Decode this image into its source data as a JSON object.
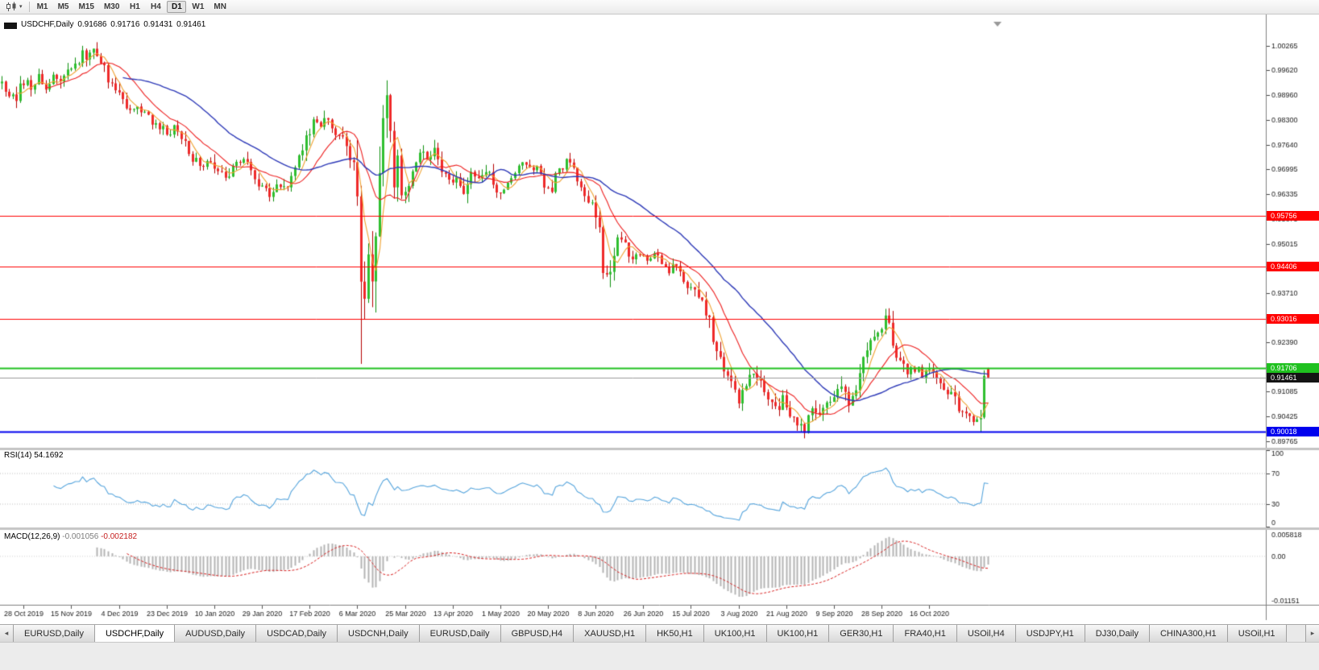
{
  "toolbar": {
    "chart_type_icon": "candlestick-chart-icon",
    "dropdown_icon": "caret-down-icon",
    "timeframes": [
      "M1",
      "M5",
      "M15",
      "M30",
      "H1",
      "H4",
      "D1",
      "W1",
      "MN"
    ],
    "active_timeframe": "D1"
  },
  "chart": {
    "symbol": "USDCHF,Daily",
    "ohlc": {
      "open": "0.91686",
      "high": "0.91716",
      "low": "0.91431",
      "close": "0.91461"
    },
    "price_ticks": [
      "1.00265",
      "0.99620",
      "0.98960",
      "0.98300",
      "0.97640",
      "0.96995",
      "0.96335",
      "0.95675",
      "0.95015",
      "0.94355",
      "0.93710",
      "0.93050",
      "0.92390",
      "0.91730",
      "0.91085",
      "0.90425",
      "0.89765"
    ],
    "date_labels": [
      "28 Oct 2019",
      "15 Nov 2019",
      "4 Dec 2019",
      "23 Dec 2019",
      "10 Jan 2020",
      "29 Jan 2020",
      "17 Feb 2020",
      "6 Mar 2020",
      "25 Mar 2020",
      "13 Apr 2020",
      "1 May 2020",
      "20 May 2020",
      "8 Jun 2020",
      "26 Jun 2020",
      "15 Jul 2020",
      "3 Aug 2020",
      "21 Aug 2020",
      "9 Sep 2020",
      "28 Sep 2020",
      "16 Oct 2020"
    ],
    "hlines": [
      {
        "label": "0.95756",
        "price": 0.95756,
        "color": "#ff0000",
        "width": 1
      },
      {
        "label": "0.94406",
        "price": 0.94406,
        "color": "#ff0000",
        "width": 1
      },
      {
        "label": "0.93016",
        "price": 0.93016,
        "color": "#ff0000",
        "width": 1
      },
      {
        "label": "0.91706",
        "price": 0.91706,
        "color": "#1fc11f",
        "width": 2
      },
      {
        "label": "0.90018",
        "price": 0.90018,
        "color": "#0000ee",
        "width": 2
      }
    ],
    "bid_line": {
      "label": "0.91461",
      "price": 0.91461,
      "line_color": "#9a9a9a",
      "badge_color": "#141414"
    },
    "colors": {
      "up_fill": "#2fbf2f",
      "up_border": "#0d8f0d",
      "down_fill": "#ef2929",
      "down_border": "#b40000",
      "axis_text": "#1a1a1a",
      "axis_line": "#808080"
    },
    "moving_averages": [
      {
        "name": "ma-fast",
        "period": 5,
        "color": "#f0a332"
      },
      {
        "name": "ma-mid",
        "period": 13,
        "color": "#ee1f1f"
      },
      {
        "name": "ma-slow",
        "period": 34,
        "color": "#2e3ab8"
      }
    ],
    "series": {
      "type": "candlestick",
      "count": 270,
      "seed": 1234,
      "base_volatility": 0.0013,
      "anchors": [
        [
          0,
          0.9927
        ],
        [
          2,
          0.99
        ],
        [
          4,
          0.9893
        ],
        [
          6,
          0.993
        ],
        [
          8,
          0.9915
        ],
        [
          10,
          0.9938
        ],
        [
          12,
          0.992
        ],
        [
          14,
          0.9942
        ],
        [
          16,
          0.9928
        ],
        [
          18,
          0.995
        ],
        [
          20,
          0.9975
        ],
        [
          22,
          1.0
        ],
        [
          23,
          0.9982
        ],
        [
          25,
          1.001
        ],
        [
          27,
          0.999
        ],
        [
          29,
          0.994
        ],
        [
          31,
          0.992
        ],
        [
          33,
          0.9885
        ],
        [
          35,
          0.986
        ],
        [
          37,
          0.9868
        ],
        [
          39,
          0.9845
        ],
        [
          41,
          0.9825
        ],
        [
          43,
          0.9812
        ],
        [
          45,
          0.9795
        ],
        [
          47,
          0.9805
        ],
        [
          49,
          0.9778
        ],
        [
          51,
          0.9742
        ],
        [
          53,
          0.9722
        ],
        [
          55,
          0.97
        ],
        [
          57,
          0.9715
        ],
        [
          59,
          0.9685
        ],
        [
          61,
          0.9672
        ],
        [
          63,
          0.97
        ],
        [
          65,
          0.9722
        ],
        [
          67,
          0.971
        ],
        [
          69,
          0.9672
        ],
        [
          71,
          0.965
        ],
        [
          73,
          0.964
        ],
        [
          75,
          0.966
        ],
        [
          77,
          0.9648
        ],
        [
          79,
          0.968
        ],
        [
          81,
          0.9718
        ],
        [
          83,
          0.978
        ],
        [
          85,
          0.9838
        ],
        [
          87,
          0.982
        ],
        [
          89,
          0.984
        ],
        [
          91,
          0.9802
        ],
        [
          93,
          0.9782
        ],
        [
          95,
          0.973
        ],
        [
          96,
          0.9705
        ],
        [
          97,
          0.96
        ],
        [
          98,
          0.942
        ],
        [
          99,
          0.936
        ],
        [
          100,
          0.946
        ],
        [
          101,
          0.9405
        ],
        [
          102,
          0.956
        ],
        [
          103,
          0.9705
        ],
        [
          104,
          0.983
        ],
        [
          105,
          0.9885
        ],
        [
          106,
          0.979
        ],
        [
          107,
          0.966
        ],
        [
          108,
          0.971
        ],
        [
          109,
          0.9615
        ],
        [
          110,
          0.964
        ],
        [
          112,
          0.9705
        ],
        [
          114,
          0.976
        ],
        [
          116,
          0.9722
        ],
        [
          118,
          0.9752
        ],
        [
          120,
          0.9705
        ],
        [
          122,
          0.9668
        ],
        [
          124,
          0.9685
        ],
        [
          126,
          0.9652
        ],
        [
          128,
          0.9698
        ],
        [
          130,
          0.9672
        ],
        [
          132,
          0.9692
        ],
        [
          134,
          0.9662
        ],
        [
          136,
          0.9635
        ],
        [
          138,
          0.9662
        ],
        [
          140,
          0.97
        ],
        [
          142,
          0.9728
        ],
        [
          144,
          0.9712
        ],
        [
          146,
          0.9698
        ],
        [
          148,
          0.9662
        ],
        [
          150,
          0.964
        ],
        [
          152,
          0.9698
        ],
        [
          154,
          0.9718
        ],
        [
          156,
          0.97
        ],
        [
          158,
          0.9662
        ],
        [
          160,
          0.9622
        ],
        [
          162,
          0.9585
        ],
        [
          163,
          0.9525
        ],
        [
          164,
          0.9445
        ],
        [
          165,
          0.9402
        ],
        [
          166,
          0.9432
        ],
        [
          167,
          0.9478
        ],
        [
          168,
          0.9512
        ],
        [
          170,
          0.9492
        ],
        [
          172,
          0.9462
        ],
        [
          174,
          0.9478
        ],
        [
          176,
          0.9465
        ],
        [
          178,
          0.9482
        ],
        [
          180,
          0.9452
        ],
        [
          182,
          0.9432
        ],
        [
          184,
          0.9442
        ],
        [
          186,
          0.9412
        ],
        [
          188,
          0.9382
        ],
        [
          190,
          0.936
        ],
        [
          192,
          0.9322
        ],
        [
          194,
          0.9252
        ],
        [
          196,
          0.9202
        ],
        [
          198,
          0.9152
        ],
        [
          200,
          0.91
        ],
        [
          201,
          0.9078
        ],
        [
          203,
          0.9128
        ],
        [
          205,
          0.9158
        ],
        [
          207,
          0.9122
        ],
        [
          209,
          0.9082
        ],
        [
          211,
          0.9058
        ],
        [
          213,
          0.9092
        ],
        [
          215,
          0.9052
        ],
        [
          217,
          0.9022
        ],
        [
          219,
          0.9008
        ],
        [
          221,
          0.9062
        ],
        [
          223,
          0.9032
        ],
        [
          225,
          0.9078
        ],
        [
          227,
          0.9102
        ],
        [
          229,
          0.9132
        ],
        [
          231,
          0.9082
        ],
        [
          233,
          0.9122
        ],
        [
          235,
          0.9182
        ],
        [
          237,
          0.9242
        ],
        [
          239,
          0.9272
        ],
        [
          241,
          0.9296
        ],
        [
          243,
          0.9252
        ],
        [
          245,
          0.9182
        ],
        [
          247,
          0.9152
        ],
        [
          249,
          0.9172
        ],
        [
          251,
          0.9156
        ],
        [
          253,
          0.9172
        ],
        [
          255,
          0.9142
        ],
        [
          257,
          0.9122
        ],
        [
          259,
          0.9102
        ],
        [
          261,
          0.9062
        ],
        [
          263,
          0.9046
        ],
        [
          265,
          0.9038
        ],
        [
          267,
          0.9046
        ],
        [
          268,
          0.9148
        ],
        [
          269,
          0.9146
        ]
      ],
      "overrides": [
        {
          "i": 98,
          "l": 0.9182
        },
        {
          "i": 268,
          "o": 0.904,
          "h": 0.9165,
          "l": 0.9036,
          "c": 0.915
        },
        {
          "i": 269,
          "o": 0.91686,
          "h": 0.91716,
          "l": 0.91431,
          "c": 0.91461
        }
      ]
    }
  },
  "rsi": {
    "label": "RSI(14)",
    "value": "54.1692",
    "period": 14,
    "line_color": "#56a5dd",
    "upper_level": 70,
    "lower_level": 30,
    "scale_values": [
      100,
      70,
      30,
      0
    ],
    "scale_labels": [
      "100",
      "70",
      "30",
      "0"
    ]
  },
  "macd": {
    "label": "MACD(12,26,9)",
    "value_main": "-0.001056",
    "value_signal": "-0.002182",
    "fast": 12,
    "slow": 26,
    "signal": 9,
    "histogram_color": "#b4b4b4",
    "signal_color": "#d92020",
    "scale_top": 0.005818,
    "scale_bottom": -0.01151,
    "scale_top_label": "0.005818",
    "scale_zero_label": "0.00",
    "scale_bottom_label": "-0.01151"
  },
  "tabs": {
    "scroll_left_icon": "chevron-left-icon",
    "scroll_right_icon": "chevron-right-icon",
    "active_index": 1,
    "items": [
      "EURUSD,Daily",
      "USDCHF,Daily",
      "AUDUSD,Daily",
      "USDCAD,Daily",
      "USDCNH,Daily",
      "EURUSD,Daily",
      "GBPUSD,H4",
      "XAUUSD,H1",
      "HK50,H1",
      "UK100,H1",
      "UK100,H1",
      "GER30,H1",
      "FRA40,H1",
      "USOil,H4",
      "USDJPY,H1",
      "DJ30,Daily",
      "CHINA300,H1",
      "USOil,H1"
    ]
  }
}
